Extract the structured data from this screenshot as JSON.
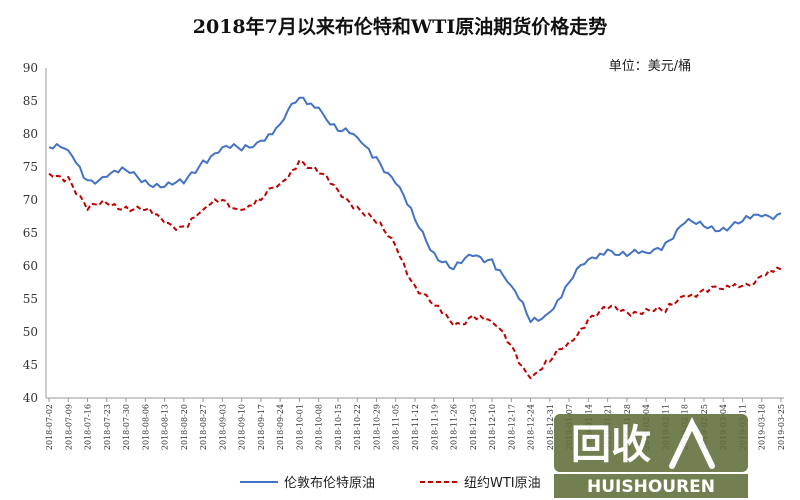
{
  "chart_data": {
    "type": "line",
    "title": "2018年7月以来布伦特和WTI原油期货价格走势",
    "unit_label": "单位：美元/桶",
    "ylim": [
      40,
      90
    ],
    "yticks": [
      40,
      45,
      50,
      55,
      60,
      65,
      70,
      75,
      80,
      85,
      90
    ],
    "grid": false,
    "legend_position": "bottom",
    "x": [
      "2018-07-02",
      "2018-07-09",
      "2018-07-16",
      "2018-07-23",
      "2018-07-30",
      "2018-08-06",
      "2018-08-13",
      "2018-08-20",
      "2018-08-27",
      "2018-09-03",
      "2018-09-10",
      "2018-09-17",
      "2018-09-24",
      "2018-10-01",
      "2018-10-08",
      "2018-10-15",
      "2018-10-22",
      "2018-10-29",
      "2018-11-05",
      "2018-11-12",
      "2018-11-19",
      "2018-11-26",
      "2018-12-03",
      "2018-12-10",
      "2018-12-17",
      "2018-12-24",
      "2018-12-31",
      "2019-01-07",
      "2019-01-14",
      "2019-01-21",
      "2019-01-28",
      "2019-02-04",
      "2019-02-11",
      "2019-02-18",
      "2019-02-25",
      "2019-03-04",
      "2019-03-11",
      "2019-03-18",
      "2019-03-25"
    ],
    "series": [
      {
        "name": "伦敦布伦特原油",
        "color": "#4472c4",
        "style": "solid",
        "values": [
          78.0,
          77.5,
          73.0,
          73.5,
          74.5,
          73.0,
          72.0,
          72.5,
          76.0,
          78.0,
          77.5,
          79.0,
          81.5,
          85.5,
          84.0,
          80.5,
          79.5,
          76.5,
          72.5,
          67.0,
          62.0,
          59.5,
          61.5,
          61.0,
          57.0,
          51.5,
          53.0,
          57.5,
          61.0,
          62.5,
          61.5,
          62.0,
          63.5,
          66.5,
          66.0,
          65.8,
          66.8,
          67.5,
          68.0
        ]
      },
      {
        "name": "纽约WTI原油",
        "color": "#c00000",
        "style": "dashed",
        "values": [
          74.0,
          73.5,
          68.5,
          69.5,
          69.0,
          68.5,
          66.5,
          66.0,
          68.5,
          70.0,
          68.5,
          70.0,
          72.5,
          76.0,
          74.0,
          71.5,
          69.0,
          66.5,
          63.0,
          57.0,
          54.0,
          51.0,
          52.5,
          51.5,
          48.0,
          43.0,
          45.5,
          48.5,
          52.0,
          53.5,
          53.0,
          53.5,
          53.0,
          55.5,
          56.5,
          56.5,
          57.0,
          58.5,
          59.5
        ]
      }
    ]
  },
  "watermark": {
    "logo_text": "回收",
    "latin_text": "HUISHOUREN"
  }
}
